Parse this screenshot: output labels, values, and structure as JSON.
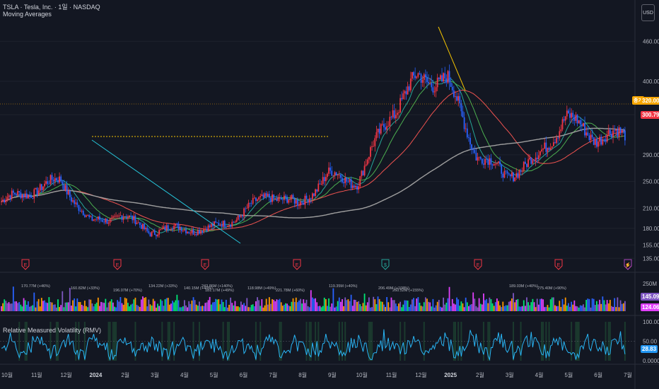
{
  "header": {
    "symbol_title": "TSLA · Tesla, Inc. · 1일 · NASDAQ",
    "indicator_ma": "Moving Averages",
    "indicator_rmv": "Relative Measured Volatility (RMV)",
    "currency_button": "USD"
  },
  "price_axis": {
    "ticks": [
      "460.00",
      "400.00",
      "350.00",
      "290.00",
      "250.00",
      "210.00",
      "180.00",
      "155.00",
      "135.00"
    ],
    "current_price": "320.00",
    "ma_value": "300.79",
    "tag_label": "종가"
  },
  "volume_axis": {
    "top_tick": "250M",
    "val1": "145.09M",
    "val2": "124.06M"
  },
  "rmv_axis": {
    "ticks": [
      "100.00",
      "50.00",
      "0.0000"
    ],
    "current": "28.83"
  },
  "time_axis": [
    "10월",
    "11월",
    "12월",
    "2024",
    "2월",
    "3월",
    "4월",
    "5월",
    "6월",
    "7월",
    "8월",
    "9월",
    "10월",
    "11월",
    "12월",
    "2025",
    "2월",
    "3월",
    "4월",
    "5월",
    "6월",
    "7월"
  ],
  "volume_labels": [
    "170.77M (+46%)",
    "160.82M (+33%)",
    "196.07M (+70%)",
    "134.22M (+33%)",
    "140.15M (+40%)",
    "181.17M (+49%)",
    "243.86M (+140%)",
    "118.98M (+49%)",
    "221.78M (+60%)",
    "119.35M (+40%)",
    "206.49M (+108%)",
    "260.52M (+155%)",
    "189.03M (+40%)",
    "275.40M (+90%)"
  ],
  "event_markers": [
    "E",
    "E",
    "E",
    "E",
    "$",
    "E",
    "E",
    "E",
    "⚡"
  ],
  "chart_data": {
    "type": "candlestick",
    "ylim": [
      130,
      490
    ],
    "x_ticks": [
      "10월",
      "11월",
      "12월",
      "2024",
      "2월",
      "3월",
      "4월",
      "5월",
      "6월",
      "7월",
      "8월",
      "9월",
      "10월",
      "11월",
      "12월",
      "2025",
      "2월",
      "3월",
      "4월",
      "5월",
      "6월",
      "7월"
    ],
    "price_path_monthly": [
      {
        "month": "2023-10",
        "close": 220
      },
      {
        "month": "2023-11",
        "close": 236
      },
      {
        "month": "2023-12",
        "close": 252
      },
      {
        "month": "2024-01",
        "close": 188
      },
      {
        "month": "2024-02",
        "close": 200
      },
      {
        "month": "2024-03",
        "close": 176
      },
      {
        "month": "2024-04",
        "close": 180
      },
      {
        "month": "2024-05",
        "close": 178
      },
      {
        "month": "2024-06",
        "close": 198
      },
      {
        "month": "2024-07",
        "close": 232
      },
      {
        "month": "2024-08",
        "close": 214
      },
      {
        "month": "2024-09",
        "close": 260
      },
      {
        "month": "2024-10",
        "close": 250
      },
      {
        "month": "2024-11",
        "close": 345
      },
      {
        "month": "2024-12",
        "close": 403
      },
      {
        "month": "2025-01",
        "close": 404
      },
      {
        "month": "2025-02",
        "close": 292
      },
      {
        "month": "2025-03",
        "close": 259
      },
      {
        "month": "2025-04",
        "close": 282
      },
      {
        "month": "2025-05",
        "close": 346
      },
      {
        "month": "2025-06",
        "close": 317
      },
      {
        "month": "2025-07",
        "close": 320
      }
    ],
    "rmv_ylim": [
      0,
      100
    ]
  }
}
